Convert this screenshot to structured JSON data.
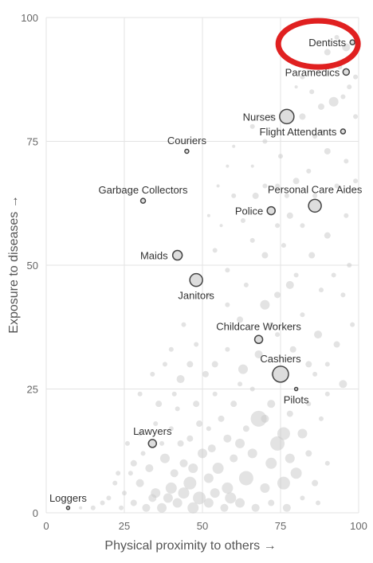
{
  "chart_data": {
    "type": "scatter",
    "title": "",
    "xlabel": "Physical proximity to others →",
    "ylabel": "Exposure to diseases →",
    "xlim": [
      0,
      100
    ],
    "ylim": [
      0,
      100
    ],
    "xticks": [
      "0",
      "25",
      "50",
      "75",
      "100"
    ],
    "yticks": [
      "0",
      "25",
      "50",
      "75",
      "100"
    ],
    "grid": true,
    "highlighted_circle_around": "Dentists",
    "highlight_color": "#e02020",
    "labeled_points": [
      {
        "label": "Dentists",
        "x": 98,
        "y": 95,
        "size": 3
      },
      {
        "label": "Paramedics",
        "x": 96,
        "y": 89,
        "size": 4
      },
      {
        "label": "Nurses",
        "x": 77,
        "y": 80,
        "size": 9
      },
      {
        "label": "Flight Attendants",
        "x": 95,
        "y": 77,
        "size": 3
      },
      {
        "label": "Couriers",
        "x": 45,
        "y": 73,
        "size": 2.5
      },
      {
        "label": "Garbage Collectors",
        "x": 31,
        "y": 63,
        "size": 3
      },
      {
        "label": "Personal Care Aides",
        "x": 86,
        "y": 62,
        "size": 8
      },
      {
        "label": "Police",
        "x": 72,
        "y": 61,
        "size": 5
      },
      {
        "label": "Maids",
        "x": 42,
        "y": 52,
        "size": 6
      },
      {
        "label": "Janitors",
        "x": 48,
        "y": 47,
        "size": 8
      },
      {
        "label": "Childcare Workers",
        "x": 68,
        "y": 35,
        "size": 5
      },
      {
        "label": "Cashiers",
        "x": 75,
        "y": 28,
        "size": 10
      },
      {
        "label": "Pilots",
        "x": 80,
        "y": 25,
        "size": 2
      },
      {
        "label": "Lawyers",
        "x": 34,
        "y": 14,
        "size": 5
      },
      {
        "label": "Loggers",
        "x": 7,
        "y": 1,
        "size": 2
      }
    ],
    "background_points": [
      [
        99,
        95,
        4
      ],
      [
        96,
        94,
        5
      ],
      [
        93,
        96,
        3
      ],
      [
        90,
        93,
        4
      ],
      [
        94,
        90,
        3
      ],
      [
        97,
        86,
        3
      ],
      [
        92,
        83,
        6
      ],
      [
        88,
        82,
        4
      ],
      [
        95,
        84,
        3
      ],
      [
        99,
        88,
        3
      ],
      [
        85,
        85,
        3
      ],
      [
        82,
        80,
        4
      ],
      [
        99,
        80,
        3
      ],
      [
        86,
        76,
        3
      ],
      [
        90,
        73,
        4
      ],
      [
        96,
        71,
        3
      ],
      [
        84,
        69,
        3
      ],
      [
        80,
        67,
        4
      ],
      [
        93,
        66,
        3
      ],
      [
        99,
        67,
        3
      ],
      [
        75,
        72,
        3
      ],
      [
        70,
        75,
        3
      ],
      [
        66,
        78,
        3
      ],
      [
        60,
        74,
        2
      ],
      [
        74,
        66,
        3
      ],
      [
        67,
        64,
        4
      ],
      [
        63,
        59,
        3
      ],
      [
        78,
        60,
        4
      ],
      [
        82,
        58,
        3
      ],
      [
        90,
        56,
        4
      ],
      [
        96,
        60,
        3
      ],
      [
        76,
        54,
        3
      ],
      [
        70,
        52,
        4
      ],
      [
        66,
        55,
        3
      ],
      [
        80,
        48,
        3
      ],
      [
        85,
        52,
        4
      ],
      [
        92,
        48,
        3
      ],
      [
        97,
        50,
        3
      ],
      [
        88,
        45,
        3
      ],
      [
        78,
        46,
        5
      ],
      [
        74,
        44,
        4
      ],
      [
        70,
        42,
        6
      ],
      [
        64,
        46,
        3
      ],
      [
        58,
        49,
        3
      ],
      [
        54,
        53,
        3
      ],
      [
        52,
        44,
        3
      ],
      [
        58,
        42,
        3
      ],
      [
        62,
        39,
        4
      ],
      [
        72,
        38,
        3
      ],
      [
        82,
        40,
        3
      ],
      [
        87,
        36,
        5
      ],
      [
        93,
        34,
        4
      ],
      [
        98,
        38,
        3
      ],
      [
        90,
        30,
        3
      ],
      [
        84,
        30,
        4
      ],
      [
        79,
        33,
        4
      ],
      [
        74,
        36,
        3
      ],
      [
        68,
        32,
        5
      ],
      [
        63,
        29,
        6
      ],
      [
        58,
        33,
        3
      ],
      [
        54,
        30,
        4
      ],
      [
        48,
        34,
        3
      ],
      [
        44,
        38,
        3
      ],
      [
        40,
        33,
        3
      ],
      [
        46,
        30,
        4
      ],
      [
        43,
        27,
        5
      ],
      [
        38,
        30,
        3
      ],
      [
        34,
        28,
        3
      ],
      [
        30,
        24,
        3
      ],
      [
        36,
        22,
        4
      ],
      [
        42,
        21,
        3
      ],
      [
        48,
        22,
        4
      ],
      [
        54,
        24,
        3
      ],
      [
        60,
        22,
        4
      ],
      [
        66,
        25,
        3
      ],
      [
        72,
        22,
        5
      ],
      [
        78,
        20,
        4
      ],
      [
        84,
        22,
        3
      ],
      [
        90,
        24,
        3
      ],
      [
        95,
        26,
        5
      ],
      [
        88,
        19,
        3
      ],
      [
        82,
        16,
        6
      ],
      [
        76,
        16,
        8
      ],
      [
        70,
        19,
        5
      ],
      [
        64,
        17,
        4
      ],
      [
        58,
        15,
        5
      ],
      [
        52,
        17,
        3
      ],
      [
        46,
        15,
        4
      ],
      [
        40,
        17,
        3
      ],
      [
        35,
        18,
        3
      ],
      [
        30,
        16,
        3
      ],
      [
        26,
        14,
        3
      ],
      [
        28,
        10,
        4
      ],
      [
        33,
        9,
        5
      ],
      [
        38,
        11,
        6
      ],
      [
        44,
        10,
        5
      ],
      [
        50,
        12,
        6
      ],
      [
        55,
        9,
        7
      ],
      [
        60,
        11,
        5
      ],
      [
        66,
        12,
        6
      ],
      [
        72,
        10,
        7
      ],
      [
        78,
        11,
        6
      ],
      [
        84,
        12,
        4
      ],
      [
        90,
        10,
        3
      ],
      [
        68,
        19,
        10
      ],
      [
        74,
        14,
        9
      ],
      [
        80,
        8,
        7
      ],
      [
        86,
        6,
        4
      ],
      [
        76,
        6,
        8
      ],
      [
        70,
        5,
        6
      ],
      [
        64,
        7,
        9
      ],
      [
        58,
        5,
        7
      ],
      [
        52,
        7,
        6
      ],
      [
        46,
        6,
        8
      ],
      [
        40,
        5,
        7
      ],
      [
        35,
        4,
        6
      ],
      [
        30,
        6,
        5
      ],
      [
        25,
        4,
        3
      ],
      [
        22,
        6,
        3
      ],
      [
        20,
        3,
        3
      ],
      [
        24,
        1,
        3
      ],
      [
        28,
        2,
        4
      ],
      [
        32,
        1,
        5
      ],
      [
        37,
        1,
        6
      ],
      [
        42,
        2,
        6
      ],
      [
        47,
        1,
        7
      ],
      [
        52,
        2,
        6
      ],
      [
        57,
        1,
        5
      ],
      [
        62,
        2,
        6
      ],
      [
        67,
        1,
        5
      ],
      [
        72,
        2,
        4
      ],
      [
        77,
        1,
        5
      ],
      [
        82,
        3,
        3
      ],
      [
        87,
        2,
        3
      ],
      [
        15,
        1,
        3
      ],
      [
        18,
        2,
        3
      ],
      [
        11,
        1,
        2
      ],
      [
        44,
        4,
        7
      ],
      [
        49,
        3,
        8
      ],
      [
        54,
        4,
        6
      ],
      [
        59,
        3,
        7
      ],
      [
        39,
        3,
        6
      ],
      [
        34,
        3,
        5
      ],
      [
        41,
        8,
        5
      ],
      [
        47,
        9,
        6
      ],
      [
        53,
        13,
        5
      ],
      [
        62,
        14,
        6
      ],
      [
        56,
        19,
        4
      ],
      [
        49,
        18,
        4
      ],
      [
        43,
        14,
        4
      ],
      [
        37,
        14,
        3
      ],
      [
        31,
        12,
        3
      ],
      [
        27,
        8,
        3
      ],
      [
        23,
        8,
        3
      ],
      [
        73,
        28,
        4
      ],
      [
        62,
        26,
        3
      ],
      [
        51,
        28,
        4
      ],
      [
        41,
        24,
        3
      ],
      [
        86,
        28,
        3
      ],
      [
        95,
        44,
        3
      ],
      [
        86,
        64,
        3
      ],
      [
        70,
        66,
        3
      ],
      [
        60,
        64,
        3
      ],
      [
        55,
        66,
        2
      ],
      [
        52,
        60,
        2
      ],
      [
        56,
        58,
        2
      ],
      [
        74,
        58,
        3
      ],
      [
        72,
        80,
        3
      ],
      [
        82,
        88,
        3
      ],
      [
        88,
        90,
        3
      ],
      [
        80,
        86,
        2
      ],
      [
        58,
        70,
        2
      ],
      [
        77,
        64,
        3
      ],
      [
        88,
        77,
        3
      ],
      [
        66,
        70,
        2
      ]
    ]
  }
}
